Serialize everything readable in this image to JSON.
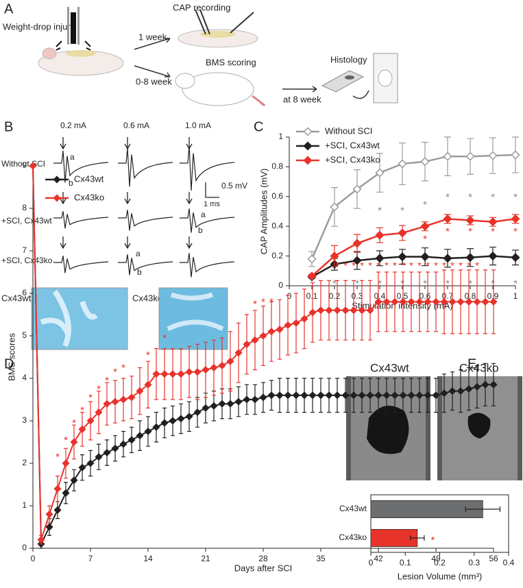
{
  "panel_labels": [
    "A",
    "B",
    "C",
    "D",
    "E"
  ],
  "schematic": {
    "injury": "Weight-drop injury",
    "week1": "1 week",
    "cap": "CAP recording",
    "week0_8": "0-8 week",
    "bms": "BMS scoring",
    "week8": "at 8 week",
    "histology": "Histology"
  },
  "traces": {
    "currents": [
      "0.2 mA",
      "0.6 mA",
      "1.0 mA"
    ],
    "rows": [
      "Without SCI",
      "+SCI, Cx43wt",
      "+SCI, Cx43ko"
    ],
    "scale_amplitude": "0.5 mV",
    "scale_time": "1 ms",
    "peak_labels": [
      "a",
      "b"
    ],
    "stain_images": [
      "Cx43wt",
      "Cx43ko"
    ]
  },
  "lesion_images": [
    "Cx43wt",
    "Cx43ko"
  ],
  "chart_data": [
    {
      "type": "line",
      "xlabel": "Stimulation intensity (mA)",
      "ylabel": "CAP Amplitudes (mV)",
      "x": [
        0.1,
        0.2,
        0.3,
        0.4,
        0.5,
        0.6,
        0.7,
        0.8,
        0.9,
        1
      ],
      "xlim": [
        0,
        1
      ],
      "xticks": [
        0,
        0.1,
        0.2,
        0.3,
        0.4,
        0.5,
        0.6,
        0.7,
        0.8,
        0.9,
        1
      ],
      "ylim": [
        0,
        1
      ],
      "yticks": [
        0,
        0.2,
        0.4,
        0.6,
        0.8,
        1
      ],
      "legend": "upper left",
      "series": [
        {
          "name": "Without SCI",
          "color": "#9b9b9b",
          "marker_fill": "#ffffff",
          "values": [
            0.18,
            0.53,
            0.65,
            0.76,
            0.82,
            0.835,
            0.87,
            0.87,
            0.875,
            0.88
          ],
          "errors": [
            0.05,
            0.13,
            0.13,
            0.13,
            0.14,
            0.13,
            0.13,
            0.12,
            0.12,
            0.12
          ]
        },
        {
          "name": "+SCI, Cx43wt",
          "color": "#231f20",
          "marker_fill": "#231f20",
          "values": [
            0.06,
            0.145,
            0.17,
            0.185,
            0.195,
            0.195,
            0.185,
            0.19,
            0.2,
            0.19
          ],
          "errors": [
            0.01,
            0.04,
            0.06,
            0.05,
            0.05,
            0.06,
            0.06,
            0.06,
            0.06,
            0.05
          ]
        },
        {
          "name": "+SCI, Cx43ko",
          "color": "#e8332b",
          "marker_fill": "#e8332b",
          "values": [
            0.065,
            0.2,
            0.285,
            0.34,
            0.355,
            0.4,
            0.45,
            0.44,
            0.43,
            0.45
          ],
          "errors": [
            0.01,
            0.07,
            0.06,
            0.05,
            0.05,
            0.03,
            0.03,
            0.03,
            0.03,
            0.03
          ]
        }
      ],
      "annotations": [
        {
          "text": "*",
          "color": "#8a8a8a",
          "x": [
            0.4,
            0.5,
            0.6,
            0.7,
            0.8,
            0.9,
            1
          ],
          "y": [
            0.52,
            0.52,
            0.56,
            0.61,
            0.61,
            0.61,
            0.61
          ]
        },
        {
          "text": "*",
          "color": "#e8332b",
          "x": [
            0.6,
            0.7,
            0.8,
            0.9,
            1
          ],
          "y": [
            0.33,
            0.38,
            0.38,
            0.38,
            0.38
          ]
        },
        {
          "text": "*",
          "color": "#8a8a8a",
          "x": [
            0.2,
            0.3,
            0.4,
            0.5,
            0.6,
            0.7,
            0.8,
            0.9,
            1
          ],
          "y": [
            0.03,
            0.03,
            0.03,
            0.03,
            0.03,
            0.03,
            0.03,
            0.03,
            0.03
          ]
        }
      ]
    },
    {
      "type": "line",
      "xlabel": "Days after SCI",
      "ylabel": "BMS scores",
      "x": [
        0,
        1,
        2,
        3,
        4,
        5,
        6,
        7,
        8,
        9,
        10,
        11,
        12,
        13,
        14,
        15,
        16,
        17,
        18,
        19,
        20,
        21,
        22,
        23,
        24,
        25,
        26,
        27,
        28,
        29,
        30,
        31,
        32,
        33,
        34,
        35,
        36,
        37,
        38,
        39,
        40,
        41,
        42,
        43,
        44,
        45,
        46,
        47,
        48,
        49,
        50,
        51,
        52,
        53,
        54,
        55,
        56
      ],
      "xlim": [
        0,
        56
      ],
      "xticks": [
        0,
        7,
        14,
        21,
        28,
        35,
        42,
        49,
        56
      ],
      "ylim": [
        0,
        9
      ],
      "yticks": [
        0,
        1,
        2,
        3,
        4,
        5,
        6,
        7,
        8,
        9
      ],
      "legend": "upper left",
      "series": [
        {
          "name": "Cx43wt",
          "color": "#231f20",
          "marker_fill": "#231f20",
          "values": [
            9,
            0.1,
            0.5,
            0.9,
            1.3,
            1.6,
            1.9,
            2.0,
            2.15,
            2.25,
            2.35,
            2.45,
            2.55,
            2.65,
            2.75,
            2.85,
            2.95,
            3.0,
            3.05,
            3.1,
            3.2,
            3.3,
            3.35,
            3.4,
            3.4,
            3.45,
            3.5,
            3.5,
            3.55,
            3.6,
            3.6,
            3.6,
            3.6,
            3.6,
            3.6,
            3.6,
            3.6,
            3.6,
            3.6,
            3.6,
            3.6,
            3.6,
            3.6,
            3.6,
            3.6,
            3.6,
            3.6,
            3.6,
            3.6,
            3.6,
            3.65,
            3.7,
            3.7,
            3.75,
            3.8,
            3.85,
            3.85
          ],
          "errors": [
            0,
            0.1,
            0.2,
            0.2,
            0.25,
            0.25,
            0.3,
            0.3,
            0.3,
            0.3,
            0.3,
            0.3,
            0.3,
            0.35,
            0.35,
            0.35,
            0.35,
            0.35,
            0.35,
            0.35,
            0.35,
            0.35,
            0.35,
            0.35,
            0.35,
            0.35,
            0.35,
            0.35,
            0.35,
            0.35,
            0.4,
            0.4,
            0.4,
            0.4,
            0.4,
            0.4,
            0.4,
            0.4,
            0.4,
            0.4,
            0.4,
            0.4,
            0.4,
            0.4,
            0.4,
            0.4,
            0.4,
            0.4,
            0.4,
            0.4,
            0.45,
            0.45,
            0.5,
            0.5,
            0.5,
            0.5,
            0.5
          ]
        },
        {
          "name": "Cx43ko",
          "color": "#e8332b",
          "marker_fill": "#e8332b",
          "values": [
            9,
            0.2,
            0.8,
            1.4,
            2.0,
            2.5,
            2.8,
            3.0,
            3.2,
            3.4,
            3.45,
            3.5,
            3.55,
            3.7,
            3.85,
            4.1,
            4.1,
            4.1,
            4.1,
            4.15,
            4.15,
            4.2,
            4.25,
            4.3,
            4.4,
            4.6,
            4.8,
            4.9,
            5.0,
            5.1,
            5.15,
            5.25,
            5.3,
            5.4,
            5.55,
            5.6,
            5.6,
            5.6,
            5.6,
            5.6,
            5.6,
            5.6,
            5.8,
            5.8,
            5.8,
            5.8,
            5.8,
            5.8,
            5.8,
            5.8,
            5.8,
            5.8,
            5.8,
            5.8,
            5.8,
            5.8,
            5.8
          ],
          "errors": [
            0,
            0.1,
            0.2,
            0.3,
            0.35,
            0.4,
            0.4,
            0.45,
            0.5,
            0.5,
            0.5,
            0.5,
            0.5,
            0.55,
            0.55,
            0.6,
            0.6,
            0.6,
            0.6,
            0.6,
            0.65,
            0.65,
            0.65,
            0.65,
            0.7,
            0.7,
            0.7,
            0.7,
            0.7,
            0.7,
            0.7,
            0.7,
            0.7,
            0.7,
            0.7,
            0.7,
            0.7,
            0.7,
            0.7,
            0.7,
            0.7,
            0.7,
            0.7,
            0.7,
            0.7,
            0.7,
            0.7,
            0.7,
            0.7,
            0.7,
            0.75,
            0.75,
            0.75,
            0.75,
            0.75,
            0.75,
            0.75
          ]
        }
      ],
      "annotations": [
        {
          "text": "*",
          "color": "#e8332b",
          "x": [
            3,
            4,
            5,
            6,
            7,
            8,
            9,
            10,
            11,
            14,
            16,
            27,
            28,
            29,
            37,
            38,
            39,
            40,
            41,
            42,
            43,
            44,
            45,
            46,
            47,
            48,
            49,
            50,
            51,
            52,
            53,
            54
          ],
          "y": [
            2.2,
            2.6,
            3.0,
            3.3,
            3.6,
            3.8,
            4.0,
            4.2,
            4.3,
            4.6,
            5.0,
            5.8,
            5.85,
            5.85,
            6.7,
            6.7,
            6.7,
            6.7,
            6.7,
            6.7,
            6.7,
            6.7,
            6.7,
            6.7,
            6.7,
            6.7,
            6.7,
            6.7,
            6.7,
            6.7,
            6.7,
            6.7
          ]
        }
      ]
    },
    {
      "type": "barh",
      "xlabel": "Lesion Volume (mm³)",
      "categories": [
        "Cx43wt",
        "Cx43ko"
      ],
      "values": [
        0.325,
        0.135
      ],
      "errors": [
        0.05,
        0.02
      ],
      "colors": [
        "#6d6e70",
        "#e8332b"
      ],
      "xlim": [
        0,
        0.4
      ],
      "xticks": [
        0,
        0.1,
        0.2,
        0.3,
        0.4
      ],
      "annotations": [
        {
          "text": "*",
          "color": "#e8332b",
          "x": [
            0.18
          ],
          "y": [
            "Cx43ko"
          ]
        }
      ]
    }
  ]
}
